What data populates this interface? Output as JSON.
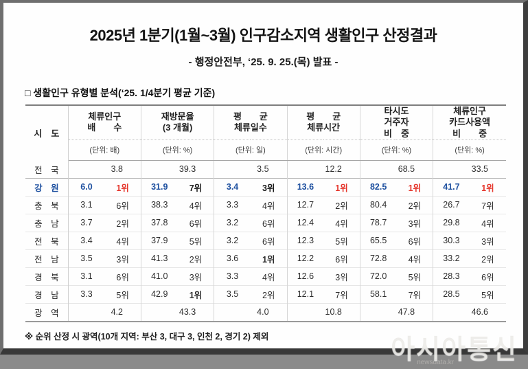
{
  "page": {
    "title": "2025년 1분기(1월~3월) 인구감소지역 생활인구 산정결과",
    "subtitle": "- 행정안전부, ‘25. 9. 25.(목) 발표 -",
    "section_title": "□ 생활인구 유형별 분석(‘25. 1/4분기 평균 기준)",
    "footnote": "※ 순위 산정 시 광역(10개 지역: 부산 3, 대구 3, 인천 2, 경기 2) 제외",
    "watermark": {
      "text": "아시아통신",
      "sub": "newsdata.kr"
    }
  },
  "colors": {
    "highlight_blue": "#1f51a0",
    "rank_first_red": "#e5352b"
  },
  "table": {
    "region_header": "시　도",
    "columns": [
      {
        "title": "체류인구\n배　　수",
        "unit": "(단위: 배)"
      },
      {
        "title": "재방문율\n(3 개월)",
        "unit": "(단위: %)"
      },
      {
        "title": "평　　균\n체류일수",
        "unit": "(단위: 일)"
      },
      {
        "title": "평　　균\n체류시간",
        "unit": "(단위: 시간)"
      },
      {
        "title": "타시도\n거주자\n비　중",
        "unit": "(단위: %)"
      },
      {
        "title": "체류인구\n카드사용액\n비　　중",
        "unit": "(단위: %)"
      }
    ],
    "rows": [
      {
        "region": "전　국",
        "type": "summary",
        "values": [
          "3.8",
          "39.3",
          "3.5",
          "12.2",
          "68.5",
          "33.5"
        ]
      },
      {
        "region": "강　원",
        "type": "highlight",
        "pairs": [
          [
            "6.0",
            "1위"
          ],
          [
            "31.9",
            "7위"
          ],
          [
            "3.4",
            "3위"
          ],
          [
            "13.6",
            "1위"
          ],
          [
            "82.5",
            "1위"
          ],
          [
            "41.7",
            "1위"
          ]
        ]
      },
      {
        "region": "충　북",
        "type": "normal",
        "pairs": [
          [
            "3.1",
            "6위"
          ],
          [
            "38.3",
            "4위"
          ],
          [
            "3.3",
            "4위"
          ],
          [
            "12.7",
            "2위"
          ],
          [
            "80.4",
            "2위"
          ],
          [
            "26.7",
            "7위"
          ]
        ]
      },
      {
        "region": "충　남",
        "type": "normal",
        "pairs": [
          [
            "3.7",
            "2위"
          ],
          [
            "37.8",
            "6위"
          ],
          [
            "3.2",
            "6위"
          ],
          [
            "12.4",
            "4위"
          ],
          [
            "78.7",
            "3위"
          ],
          [
            "29.8",
            "4위"
          ]
        ]
      },
      {
        "region": "전　북",
        "type": "normal",
        "pairs": [
          [
            "3.4",
            "4위"
          ],
          [
            "37.9",
            "5위"
          ],
          [
            "3.2",
            "6위"
          ],
          [
            "12.3",
            "5위"
          ],
          [
            "65.5",
            "6위"
          ],
          [
            "30.3",
            "3위"
          ]
        ]
      },
      {
        "region": "전　남",
        "type": "normal",
        "pairs": [
          [
            "3.5",
            "3위"
          ],
          [
            "41.3",
            "2위"
          ],
          [
            "3.6",
            "1위"
          ],
          [
            "12.2",
            "6위"
          ],
          [
            "72.8",
            "4위"
          ],
          [
            "33.2",
            "2위"
          ]
        ]
      },
      {
        "region": "경　북",
        "type": "normal",
        "pairs": [
          [
            "3.1",
            "6위"
          ],
          [
            "41.0",
            "3위"
          ],
          [
            "3.3",
            "4위"
          ],
          [
            "12.6",
            "3위"
          ],
          [
            "72.0",
            "5위"
          ],
          [
            "28.3",
            "6위"
          ]
        ]
      },
      {
        "region": "경　남",
        "type": "normal",
        "pairs": [
          [
            "3.3",
            "5위"
          ],
          [
            "42.9",
            "1위"
          ],
          [
            "3.5",
            "2위"
          ],
          [
            "12.1",
            "7위"
          ],
          [
            "58.1",
            "7위"
          ],
          [
            "28.5",
            "5위"
          ]
        ]
      },
      {
        "region": "광　역",
        "type": "summary",
        "values": [
          "4.2",
          "43.3",
          "4.0",
          "10.8",
          "47.8",
          "46.6"
        ]
      }
    ]
  }
}
